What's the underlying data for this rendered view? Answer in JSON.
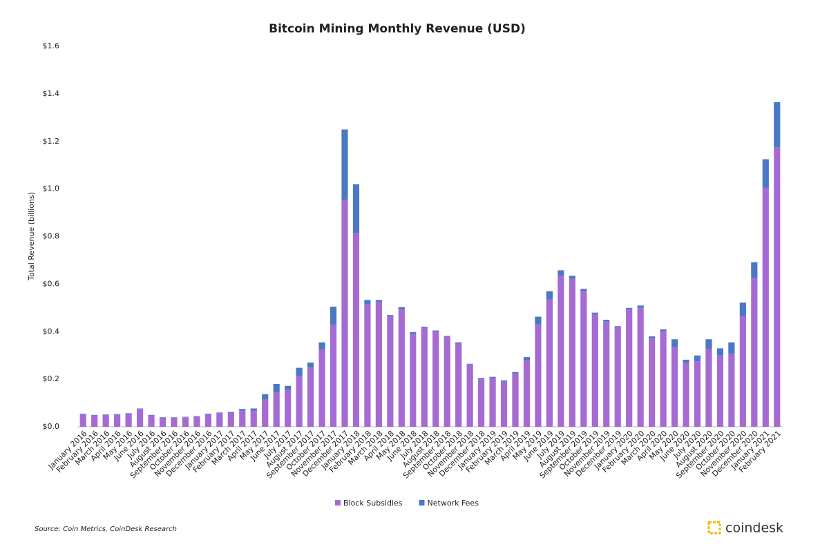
{
  "chart_data": {
    "type": "stacked_bar",
    "title": "Bitcoin Mining Monthly Revenue (USD)",
    "y_label": "Total Revenue (billions)",
    "source": "Source: Coin Metrics, CoinDesk Research",
    "brand": "coindesk",
    "categories": [
      "January 2016",
      "February 2016",
      "March 2016",
      "April 2016",
      "May 2016",
      "June 2016",
      "July 2016",
      "August 2016",
      "September 2016",
      "October 2016",
      "November 2016",
      "December 2016",
      "January 2017",
      "February 2017",
      "March 2017",
      "April 2017",
      "May 2017",
      "June 2017",
      "July 2017",
      "August 2017",
      "September 2017",
      "October 2017",
      "November 2017",
      "December 2017",
      "January 2018",
      "February 2018",
      "March 2018",
      "April 2018",
      "May 2018",
      "June 2018",
      "July 2018",
      "August 2018",
      "September 2018",
      "October 2018",
      "November 2018",
      "December 2018",
      "January 2019",
      "February 2019",
      "March 2019",
      "April 2019",
      "May 2019",
      "June 2019",
      "July 2019",
      "August 2019",
      "September 2019",
      "October 2019",
      "November 2019",
      "December 2019",
      "January 2020",
      "February 2020",
      "March 2020",
      "April 2020",
      "May 2020",
      "June 2020",
      "July 2020",
      "August 2020",
      "September 2020",
      "October 2020",
      "November 2020",
      "December 2020",
      "January 2021",
      "February 2021"
    ],
    "series": [
      {
        "name": "Block Subsidies",
        "color": "#a66bd3",
        "values": [
          0.053,
          0.048,
          0.05,
          0.051,
          0.055,
          0.075,
          0.048,
          0.038,
          0.038,
          0.04,
          0.043,
          0.052,
          0.057,
          0.058,
          0.068,
          0.068,
          0.115,
          0.145,
          0.155,
          0.215,
          0.25,
          0.325,
          0.43,
          0.955,
          0.815,
          0.515,
          0.525,
          0.465,
          0.495,
          0.39,
          0.415,
          0.4,
          0.378,
          0.35,
          0.262,
          0.2,
          0.205,
          0.19,
          0.225,
          0.28,
          0.43,
          0.535,
          0.635,
          0.622,
          0.572,
          0.474,
          0.442,
          0.418,
          0.493,
          0.5,
          0.373,
          0.402,
          0.335,
          0.27,
          0.275,
          0.328,
          0.3,
          0.308,
          0.465,
          0.625,
          1.005,
          1.175
        ]
      },
      {
        "name": "Network Fees",
        "color": "#4a78c4",
        "values": [
          0.002,
          0.002,
          0.002,
          0.002,
          0.002,
          0.002,
          0.002,
          0.002,
          0.002,
          0.002,
          0.002,
          0.003,
          0.003,
          0.004,
          0.007,
          0.009,
          0.022,
          0.035,
          0.017,
          0.033,
          0.02,
          0.03,
          0.075,
          0.295,
          0.205,
          0.018,
          0.008,
          0.005,
          0.008,
          0.008,
          0.005,
          0.005,
          0.004,
          0.005,
          0.003,
          0.005,
          0.005,
          0.005,
          0.005,
          0.013,
          0.033,
          0.035,
          0.023,
          0.013,
          0.008,
          0.006,
          0.008,
          0.005,
          0.007,
          0.01,
          0.007,
          0.008,
          0.033,
          0.012,
          0.025,
          0.04,
          0.03,
          0.047,
          0.057,
          0.067,
          0.12,
          0.19
        ]
      }
    ],
    "ylim": [
      0,
      1.6
    ],
    "yticks": [
      {
        "value": 0,
        "label": "$0.0"
      },
      {
        "value": 0.2,
        "label": "$0.2"
      },
      {
        "value": 0.4,
        "label": "$0.4"
      },
      {
        "value": 0.6,
        "label": "$0.6"
      },
      {
        "value": 0.8,
        "label": "$0.8"
      },
      {
        "value": 1.0,
        "label": "$1.0"
      },
      {
        "value": 1.2,
        "label": "$1.2"
      },
      {
        "value": 1.4,
        "label": "$1.4"
      },
      {
        "value": 1.6,
        "label": "$1.6"
      }
    ],
    "grid": false,
    "legend": "bottom"
  }
}
